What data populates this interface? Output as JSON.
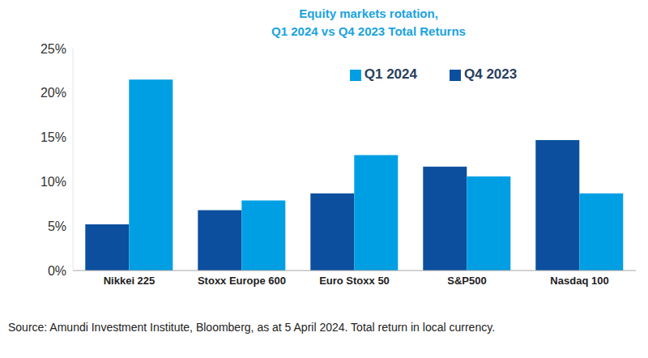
{
  "chart_data": {
    "type": "bar",
    "title": "Equity markets rotation,",
    "subtitle": "Q1 2024 vs Q4 2023 Total Returns",
    "categories": [
      "Nikkei 225",
      "Stoxx Europe 600",
      "Euro Stoxx 50",
      "S&P500",
      "Nasdaq 100"
    ],
    "series": [
      {
        "name": "Q4 2023",
        "color": "#0b4f9e",
        "values": [
          5.2,
          6.8,
          8.7,
          11.7,
          14.7
        ]
      },
      {
        "name": "Q1 2024",
        "color": "#009fe3",
        "values": [
          21.5,
          7.9,
          13.0,
          10.6,
          8.7
        ]
      }
    ],
    "ylim": [
      0,
      25
    ],
    "yticks": [
      {
        "value": 0,
        "label": "0%"
      },
      {
        "value": 5,
        "label": "5%"
      },
      {
        "value": 10,
        "label": "10%"
      },
      {
        "value": 15,
        "label": "15%"
      },
      {
        "value": 20,
        "label": "20%"
      },
      {
        "value": 25,
        "label": "25%"
      }
    ],
    "grid": false,
    "legend": "top",
    "note": "Source: Amundi Investment Institute, Bloomberg, as at 5 April 2024. Total return in local currency."
  }
}
